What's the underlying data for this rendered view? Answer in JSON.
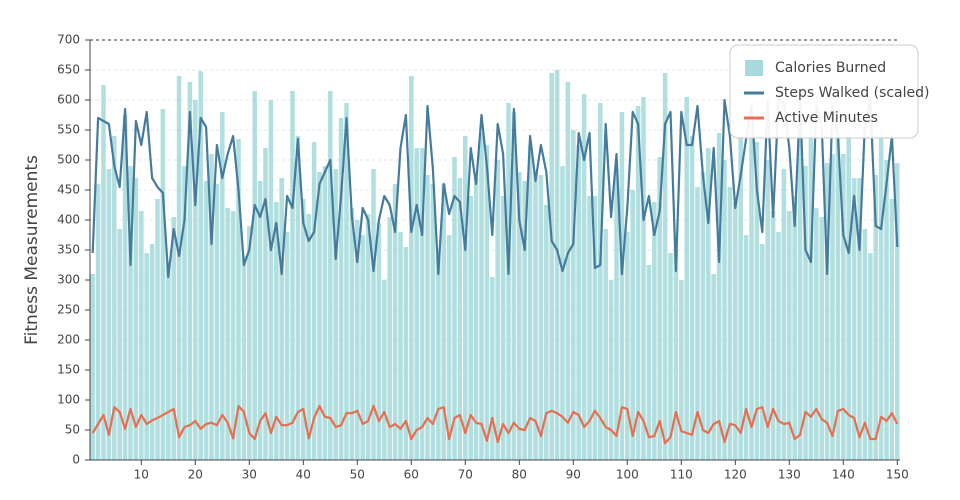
{
  "chart_data": {
    "type": "bar-line",
    "y_label": "Fitness Measurements",
    "x": [
      1,
      2,
      3,
      4,
      5,
      6,
      7,
      8,
      9,
      10,
      11,
      12,
      13,
      14,
      15,
      16,
      17,
      18,
      19,
      20,
      21,
      22,
      23,
      24,
      25,
      26,
      27,
      28,
      29,
      30,
      31,
      32,
      33,
      34,
      35,
      36,
      37,
      38,
      39,
      40,
      41,
      42,
      43,
      44,
      45,
      46,
      47,
      48,
      49,
      50,
      51,
      52,
      53,
      54,
      55,
      56,
      57,
      58,
      59,
      60,
      61,
      62,
      63,
      64,
      65,
      66,
      67,
      68,
      69,
      70,
      71,
      72,
      73,
      74,
      75,
      76,
      77,
      78,
      79,
      80,
      81,
      82,
      83,
      84,
      85,
      86,
      87,
      88,
      89,
      90,
      91,
      92,
      93,
      94,
      95,
      96,
      97,
      98,
      99,
      100,
      101,
      102,
      103,
      104,
      105,
      106,
      107,
      108,
      109,
      110,
      111,
      112,
      113,
      114,
      115,
      116,
      117,
      118,
      119,
      120,
      121,
      122,
      123,
      124,
      125,
      126,
      127,
      128,
      129,
      130,
      131,
      132,
      133,
      134,
      135,
      136,
      137,
      138,
      139,
      140,
      141,
      142,
      143,
      144,
      145,
      146,
      147,
      148,
      149,
      150
    ],
    "series": [
      {
        "name": "Calories Burned",
        "kind": "bar",
        "color": "#a8dadc",
        "values": [
          310,
          460,
          625,
          485,
          540,
          385,
          575,
          490,
          470,
          415,
          345,
          360,
          435,
          585,
          330,
          405,
          640,
          490,
          630,
          600,
          648,
          465,
          510,
          460,
          580,
          420,
          415,
          535,
          340,
          390,
          615,
          465,
          520,
          600,
          430,
          470,
          380,
          615,
          540,
          435,
          410,
          530,
          480,
          490,
          615,
          485,
          570,
          595,
          420,
          400,
          375,
          410,
          485,
          395,
          300,
          405,
          460,
          380,
          355,
          640,
          520,
          520,
          475,
          460,
          340,
          460,
          375,
          505,
          470,
          540,
          440,
          470,
          545,
          525,
          305,
          500,
          440,
          595,
          580,
          480,
          465,
          525,
          480,
          475,
          425,
          645,
          650,
          490,
          630,
          550,
          525,
          610,
          440,
          440,
          595,
          385,
          300,
          485,
          580,
          380,
          450,
          590,
          605,
          325,
          430,
          505,
          645,
          345,
          350,
          300,
          605,
          540,
          455,
          480,
          520,
          310,
          545,
          500,
          455,
          430,
          540,
          375,
          560,
          530,
          360,
          500,
          415,
          380,
          485,
          415,
          440,
          540,
          490,
          560,
          420,
          405,
          495,
          510,
          540,
          510,
          545,
          470,
          470,
          385,
          345,
          475,
          550,
          500,
          435,
          495
        ]
      },
      {
        "name": "Steps Walked (scaled)",
        "kind": "line",
        "color": "#457b9d",
        "values": [
          345,
          570,
          565,
          560,
          490,
          455,
          585,
          325,
          565,
          525,
          580,
          470,
          455,
          445,
          305,
          385,
          340,
          400,
          580,
          425,
          570,
          555,
          360,
          525,
          470,
          510,
          540,
          450,
          325,
          350,
          425,
          405,
          435,
          350,
          395,
          310,
          440,
          420,
          535,
          395,
          365,
          380,
          460,
          480,
          500,
          335,
          440,
          570,
          405,
          330,
          420,
          400,
          315,
          400,
          440,
          425,
          380,
          520,
          575,
          380,
          425,
          375,
          590,
          485,
          310,
          460,
          410,
          440,
          430,
          350,
          520,
          460,
          575,
          490,
          375,
          560,
          510,
          310,
          585,
          400,
          350,
          540,
          465,
          525,
          480,
          365,
          350,
          315,
          345,
          360,
          545,
          500,
          545,
          320,
          325,
          560,
          405,
          510,
          310,
          420,
          580,
          560,
          400,
          440,
          375,
          415,
          560,
          580,
          315,
          580,
          525,
          525,
          590,
          475,
          395,
          520,
          330,
          600,
          540,
          420,
          475,
          535,
          590,
          450,
          380,
          600,
          405,
          600,
          595,
          520,
          390,
          600,
          350,
          330,
          590,
          560,
          310,
          590,
          540,
          375,
          345,
          440,
          350,
          560,
          600,
          390,
          385,
          460,
          540,
          355
        ]
      },
      {
        "name": "Active Minutes",
        "kind": "line",
        "color": "#e76f51",
        "values": [
          45,
          60,
          75,
          42,
          88,
          80,
          52,
          85,
          55,
          75,
          60,
          66,
          70,
          75,
          80,
          85,
          38,
          55,
          58,
          65,
          52,
          60,
          62,
          58,
          75,
          62,
          36,
          90,
          80,
          45,
          35,
          65,
          78,
          45,
          72,
          58,
          58,
          62,
          80,
          85,
          36,
          70,
          90,
          72,
          70,
          55,
          58,
          78,
          78,
          82,
          60,
          65,
          90,
          65,
          80,
          55,
          60,
          52,
          65,
          35,
          50,
          55,
          70,
          60,
          85,
          88,
          35,
          70,
          75,
          45,
          75,
          62,
          60,
          32,
          70,
          30,
          60,
          45,
          62,
          52,
          50,
          70,
          65,
          40,
          78,
          82,
          78,
          72,
          62,
          80,
          75,
          55,
          65,
          82,
          70,
          55,
          50,
          40,
          88,
          85,
          40,
          80,
          65,
          38,
          40,
          65,
          28,
          38,
          80,
          48,
          45,
          42,
          80,
          50,
          45,
          60,
          65,
          30,
          60,
          58,
          45,
          85,
          55,
          85,
          88,
          55,
          85,
          65,
          60,
          62,
          35,
          42,
          80,
          72,
          85,
          68,
          62,
          40,
          82,
          85,
          75,
          70,
          38,
          62,
          35,
          35,
          72,
          65,
          78,
          60
        ]
      }
    ],
    "xlim": [
      0.5,
      150.5
    ],
    "xticks": [
      10,
      20,
      30,
      40,
      50,
      60,
      70,
      80,
      90,
      100,
      110,
      120,
      130,
      140,
      150
    ],
    "ylim": [
      0,
      700
    ],
    "yticks": [
      0,
      50,
      100,
      150,
      200,
      250,
      300,
      350,
      400,
      450,
      500,
      550,
      600,
      650,
      700
    ],
    "grid": true,
    "legend": "top-right"
  }
}
